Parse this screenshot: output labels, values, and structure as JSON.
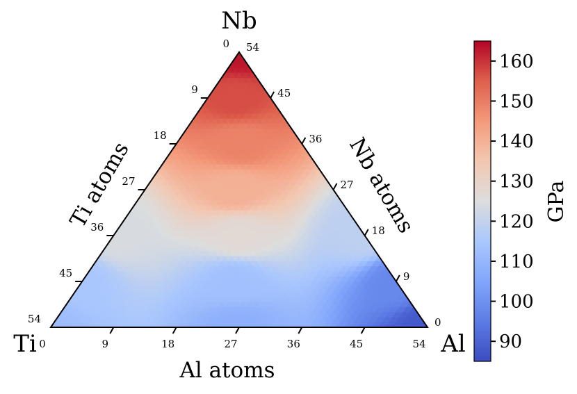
{
  "chart_data": {
    "type": "heatmap",
    "subtype": "ternary",
    "vertices": {
      "top": "Nb",
      "left": "Ti",
      "right": "Al"
    },
    "axes": {
      "bottom": {
        "label": "Al atoms",
        "ticks": [
          "0",
          "9",
          "18",
          "27",
          "36",
          "45",
          "54"
        ]
      },
      "left": {
        "label": "Ti atoms",
        "ticks": [
          "0",
          "9",
          "18",
          "27",
          "36",
          "45",
          "54"
        ]
      },
      "right": {
        "label": "Nb atoms",
        "ticks": [
          "0",
          "9",
          "18",
          "27",
          "36",
          "45",
          "54"
        ]
      }
    },
    "total_atoms": 54,
    "colormap": "coolwarm",
    "colorbar": {
      "label": "GPa",
      "range": [
        85,
        165
      ],
      "ticks": [
        "90",
        "100",
        "110",
        "120",
        "130",
        "140",
        "150",
        "160"
      ]
    },
    "value_samples": [
      {
        "nb": 54,
        "al": 0,
        "ti": 0,
        "value": 163
      },
      {
        "nb": 45,
        "al": 4,
        "ti": 5,
        "value": 157
      },
      {
        "nb": 36,
        "al": 9,
        "ti": 9,
        "value": 149
      },
      {
        "nb": 27,
        "al": 13,
        "ti": 14,
        "value": 140
      },
      {
        "nb": 18,
        "al": 18,
        "ti": 18,
        "value": 127
      },
      {
        "nb": 9,
        "al": 22,
        "ti": 23,
        "value": 113
      },
      {
        "nb": 0,
        "al": 27,
        "ti": 27,
        "value": 108
      },
      {
        "nb": 0,
        "al": 0,
        "ti": 54,
        "value": 112
      },
      {
        "nb": 0,
        "al": 54,
        "ti": 0,
        "value": 88
      },
      {
        "nb": 9,
        "al": 45,
        "ti": 0,
        "value": 98
      },
      {
        "nb": 18,
        "al": 36,
        "ti": 0,
        "value": 119
      },
      {
        "nb": 9,
        "al": 0,
        "ti": 45,
        "value": 115
      },
      {
        "nb": 18,
        "al": 0,
        "ti": 36,
        "value": 124
      }
    ]
  }
}
